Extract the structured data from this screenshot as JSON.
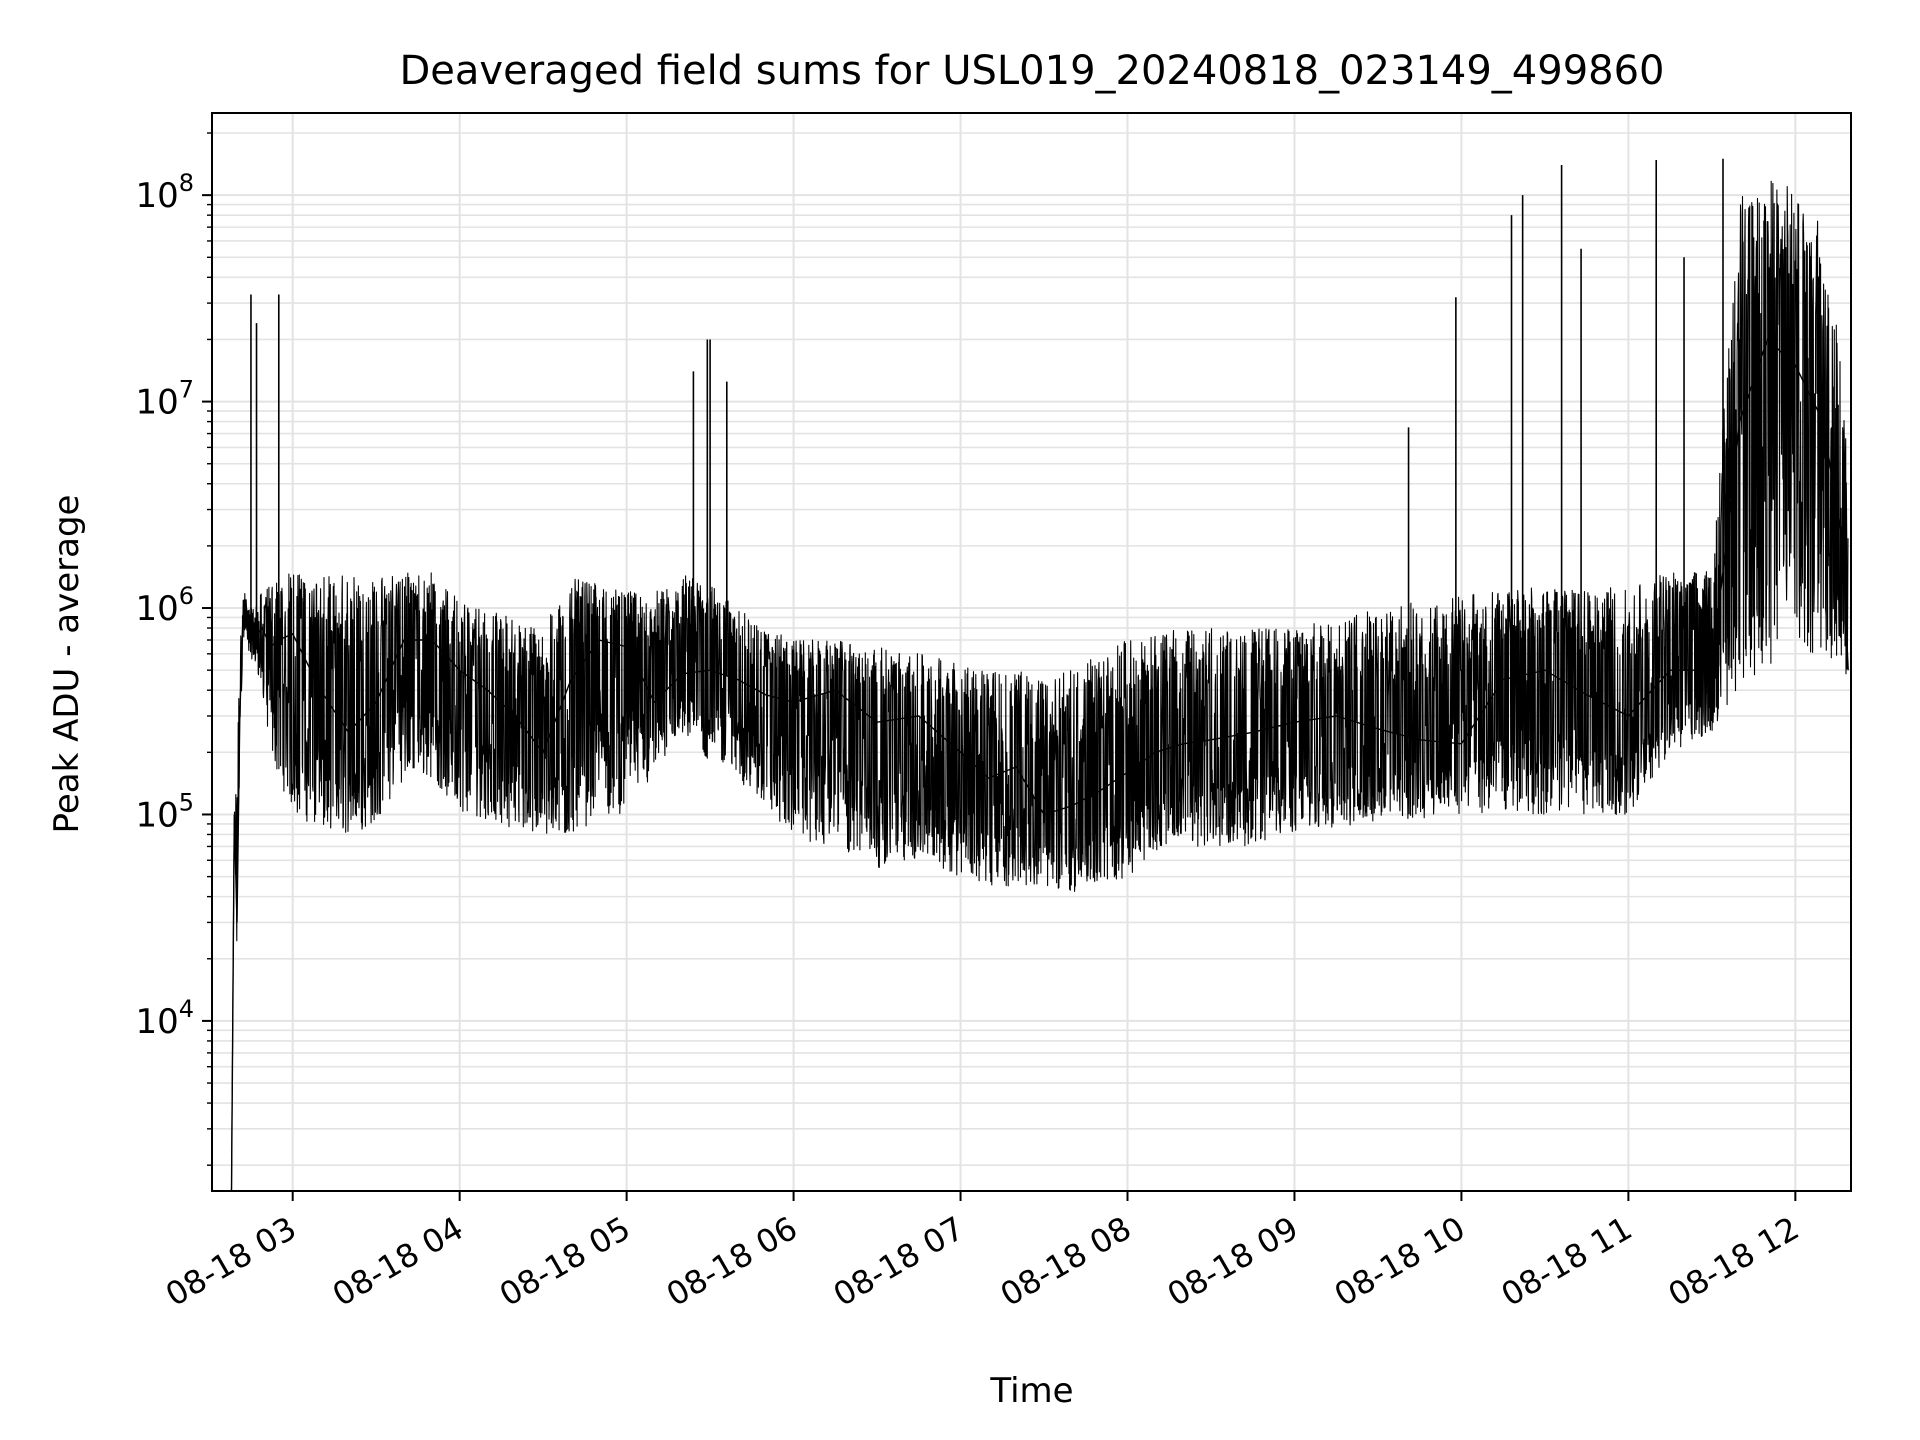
{
  "chart_data": {
    "type": "line",
    "title": "Deaveraged field sums for USL019_20240818_023149_499860",
    "xlabel": "Time",
    "ylabel": "Peak ADU - average",
    "x_axis": {
      "kind": "time",
      "range": [
        "2024-08-18 02:31",
        "2024-08-18 12:20"
      ],
      "ticks": [
        {
          "value": "2024-08-18 03:00",
          "label": "08-18 03"
        },
        {
          "value": "2024-08-18 04:00",
          "label": "08-18 04"
        },
        {
          "value": "2024-08-18 05:00",
          "label": "08-18 05"
        },
        {
          "value": "2024-08-18 06:00",
          "label": "08-18 06"
        },
        {
          "value": "2024-08-18 07:00",
          "label": "08-18 07"
        },
        {
          "value": "2024-08-18 08:00",
          "label": "08-18 08"
        },
        {
          "value": "2024-08-18 09:00",
          "label": "08-18 09"
        },
        {
          "value": "2024-08-18 10:00",
          "label": "08-18 10"
        },
        {
          "value": "2024-08-18 11:00",
          "label": "08-18 11"
        },
        {
          "value": "2024-08-18 12:00",
          "label": "08-18 12"
        }
      ]
    },
    "y_axis": {
      "scale": "log",
      "range": [
        1500,
        250000000
      ],
      "ticks": [
        {
          "value": 10000,
          "base": "10",
          "exp": "4"
        },
        {
          "value": 100000,
          "base": "10",
          "exp": "5"
        },
        {
          "value": 1000000,
          "base": "10",
          "exp": "6"
        },
        {
          "value": 10000000,
          "base": "10",
          "exp": "7"
        },
        {
          "value": 100000000,
          "base": "10",
          "exp": "8"
        }
      ]
    },
    "grid": true,
    "grid_minor": true,
    "line_color": "#000000",
    "grid_color": "#e3e3e3",
    "series": [
      {
        "x": [
          "2024-08-18 02:38",
          "2024-08-18 02:39",
          "2024-08-18 02:40",
          "2024-08-18 02:41",
          "2024-08-18 02:42",
          "2024-08-18 02:43",
          "2024-08-18 02:44",
          "2024-08-18 02:46",
          "2024-08-18 02:49",
          "2024-08-18 02:52",
          "2024-08-18 02:55",
          "2024-08-18 03:00",
          "2024-08-18 03:10",
          "2024-08-18 03:20",
          "2024-08-18 03:30",
          "2024-08-18 03:40",
          "2024-08-18 03:50",
          "2024-08-18 04:00",
          "2024-08-18 04:10",
          "2024-08-18 04:20",
          "2024-08-18 04:30",
          "2024-08-18 04:40",
          "2024-08-18 04:50",
          "2024-08-18 05:00",
          "2024-08-18 05:10",
          "2024-08-18 05:20",
          "2024-08-18 05:30",
          "2024-08-18 05:40",
          "2024-08-18 05:50",
          "2024-08-18 06:00",
          "2024-08-18 06:15",
          "2024-08-18 06:30",
          "2024-08-18 06:45",
          "2024-08-18 07:00",
          "2024-08-18 07:10",
          "2024-08-18 07:20",
          "2024-08-18 07:30",
          "2024-08-18 07:40",
          "2024-08-18 07:50",
          "2024-08-18 08:00",
          "2024-08-18 08:10",
          "2024-08-18 08:20",
          "2024-08-18 08:30",
          "2024-08-18 08:45",
          "2024-08-18 09:00",
          "2024-08-18 09:15",
          "2024-08-18 09:30",
          "2024-08-18 09:45",
          "2024-08-18 10:00",
          "2024-08-18 10:15",
          "2024-08-18 10:30",
          "2024-08-18 10:45",
          "2024-08-18 11:00",
          "2024-08-18 11:15",
          "2024-08-18 11:30",
          "2024-08-18 11:40",
          "2024-08-18 11:50",
          "2024-08-18 12:00",
          "2024-08-18 12:10",
          "2024-08-18 12:17",
          "2024-08-18 12:19"
        ],
        "y": [
          1500,
          100000,
          30000,
          300000,
          800000,
          1100000,
          850000,
          700000,
          800000,
          650000,
          700000,
          750000,
          400000,
          250000,
          350000,
          700000,
          700000,
          500000,
          400000,
          300000,
          200000,
          450000,
          700000,
          650000,
          350000,
          480000,
          500000,
          450000,
          380000,
          350000,
          400000,
          280000,
          300000,
          200000,
          150000,
          170000,
          100000,
          110000,
          130000,
          160000,
          200000,
          220000,
          230000,
          250000,
          280000,
          300000,
          260000,
          230000,
          220000,
          450000,
          500000,
          380000,
          300000,
          500000,
          500000,
          8000000,
          20000000,
          15000000,
          8000000,
          2000000,
          500000
        ],
        "band_low": [
          1500,
          100000,
          20000,
          200000,
          600000,
          700000,
          600000,
          550000,
          400000,
          200000,
          150000,
          100000,
          85000,
          80000,
          90000,
          150000,
          150000,
          100000,
          95000,
          85000,
          75000,
          75000,
          100000,
          100000,
          150000,
          250000,
          180000,
          150000,
          100000,
          80000,
          65000,
          55000,
          60000,
          50000,
          45000,
          45000,
          45000,
          42000,
          45000,
          50000,
          65000,
          70000,
          70000,
          70000,
          80000,
          85000,
          90000,
          95000,
          100000,
          100000,
          100000,
          100000,
          100000,
          200000,
          250000,
          400000,
          500000,
          600000,
          600000,
          500000,
          400000
        ],
        "band_high": [
          1500,
          100000,
          200000,
          600000,
          1100000,
          1200000,
          1000000,
          1000000,
          1200000,
          1300000,
          1400000,
          1500000,
          1400000,
          1500000,
          1500000,
          1500000,
          1500000,
          1100000,
          1000000,
          900000,
          800000,
          1400000,
          1300000,
          1200000,
          1200000,
          1500000,
          1300000,
          1000000,
          800000,
          700000,
          700000,
          650000,
          600000,
          550000,
          500000,
          500000,
          450000,
          500000,
          600000,
          700000,
          750000,
          800000,
          800000,
          800000,
          800000,
          900000,
          1000000,
          1100000,
          1200000,
          1200000,
          1300000,
          1200000,
          1300000,
          1500000,
          1500000,
          100000000,
          120000000,
          110000000,
          80000000,
          20000000,
          3000000
        ],
        "spikes": [
          {
            "x": "2024-08-18 02:45",
            "y": 33000000
          },
          {
            "x": "2024-08-18 02:47",
            "y": 24000000
          },
          {
            "x": "2024-08-18 02:55",
            "y": 33000000
          },
          {
            "x": "2024-08-18 05:24",
            "y": 14000000
          },
          {
            "x": "2024-08-18 05:29",
            "y": 20000000
          },
          {
            "x": "2024-08-18 05:30",
            "y": 20000000
          },
          {
            "x": "2024-08-18 05:36",
            "y": 12500000
          },
          {
            "x": "2024-08-18 09:41",
            "y": 7500000
          },
          {
            "x": "2024-08-18 09:58",
            "y": 32000000
          },
          {
            "x": "2024-08-18 10:18",
            "y": 80000000
          },
          {
            "x": "2024-08-18 10:22",
            "y": 100000000
          },
          {
            "x": "2024-08-18 10:36",
            "y": 140000000
          },
          {
            "x": "2024-08-18 10:43",
            "y": 55000000
          },
          {
            "x": "2024-08-18 11:10",
            "y": 148000000
          },
          {
            "x": "2024-08-18 11:20",
            "y": 50000000
          },
          {
            "x": "2024-08-18 11:34",
            "y": 150000000
          }
        ]
      }
    ]
  }
}
